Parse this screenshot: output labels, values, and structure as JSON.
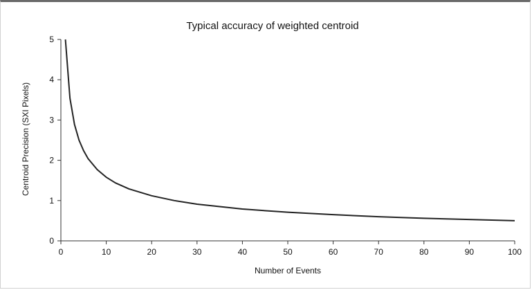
{
  "chart_data": {
    "type": "line",
    "title": "Typical accuracy of weighted centroid",
    "xlabel": "Number of Events",
    "ylabel": "Centroid Precision (SXI Pixels)",
    "xlim": [
      0,
      100
    ],
    "ylim": [
      0,
      5
    ],
    "x_ticks": [
      "0",
      "10",
      "20",
      "30",
      "40",
      "50",
      "60",
      "70",
      "80",
      "90",
      "100"
    ],
    "y_ticks": [
      "0",
      "1",
      "2",
      "3",
      "4",
      "5"
    ],
    "grid": false,
    "legend": "none",
    "line_color": "#222222",
    "series": [
      {
        "x": [
          1,
          2,
          3,
          4,
          5,
          6,
          8,
          10,
          12,
          15,
          20,
          25,
          30,
          40,
          50,
          60,
          70,
          80,
          90,
          100
        ],
        "values": [
          5.0,
          3.54,
          2.89,
          2.5,
          2.24,
          2.04,
          1.77,
          1.58,
          1.44,
          1.29,
          1.12,
          1.0,
          0.91,
          0.79,
          0.71,
          0.65,
          0.6,
          0.56,
          0.53,
          0.5
        ]
      }
    ]
  }
}
